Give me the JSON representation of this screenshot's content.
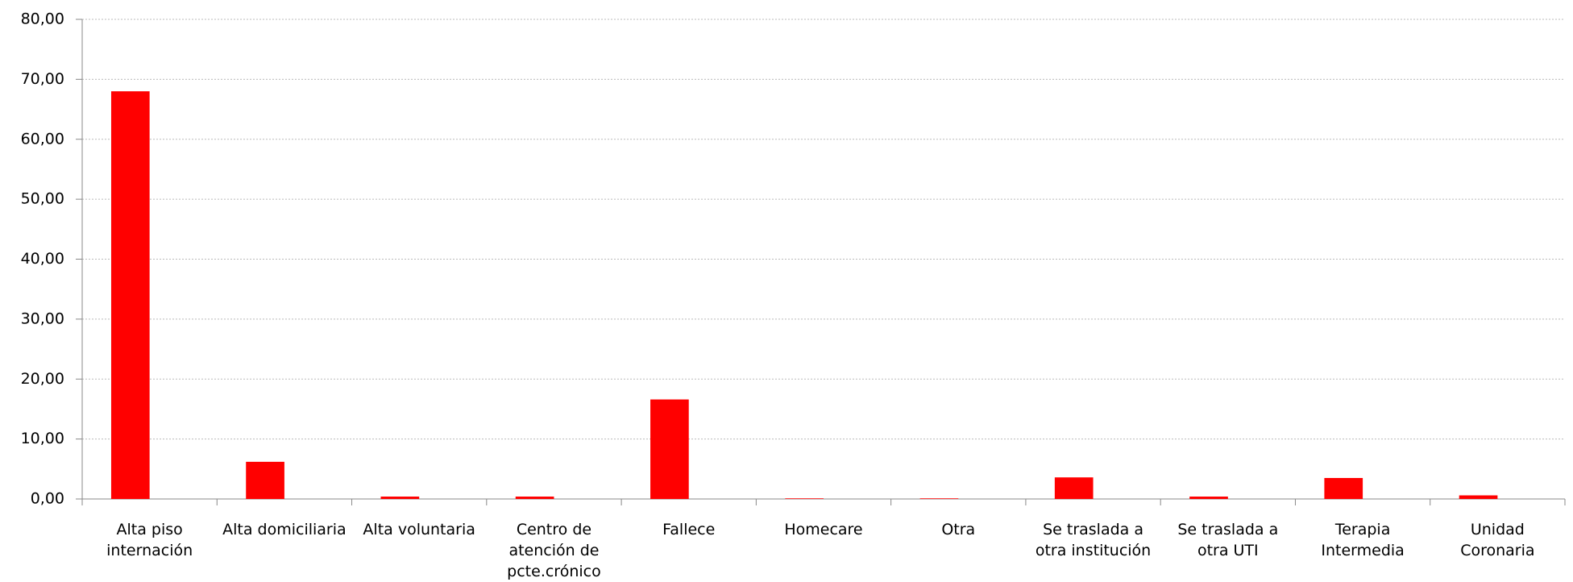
{
  "chart_data": {
    "type": "bar",
    "categories": [
      "Alta piso internación",
      "Alta domiciliaria",
      "Alta voluntaria",
      "Centro de atención de pcte.crónico",
      "Fallece",
      "Homecare",
      "Otra",
      "Se traslada a otra institución",
      "Se traslada a otra UTI",
      "Terapia Intermedia",
      "Unidad Coronaria"
    ],
    "values": [
      68.0,
      6.2,
      0.4,
      0.4,
      16.6,
      0.1,
      0.1,
      3.6,
      0.4,
      3.5,
      0.6
    ],
    "color": "#ff0000",
    "ylim": [
      0,
      80
    ],
    "yticks": [
      {
        "value": 0,
        "label": "0,00"
      },
      {
        "value": 10,
        "label": "10,00"
      },
      {
        "value": 20,
        "label": "20,00"
      },
      {
        "value": 30,
        "label": "30,00"
      },
      {
        "value": 40,
        "label": "40,00"
      },
      {
        "value": 50,
        "label": "50,00"
      },
      {
        "value": 60,
        "label": "60,00"
      },
      {
        "value": 70,
        "label": "70,00"
      },
      {
        "value": 80,
        "label": "80,00"
      }
    ],
    "grid": true
  }
}
